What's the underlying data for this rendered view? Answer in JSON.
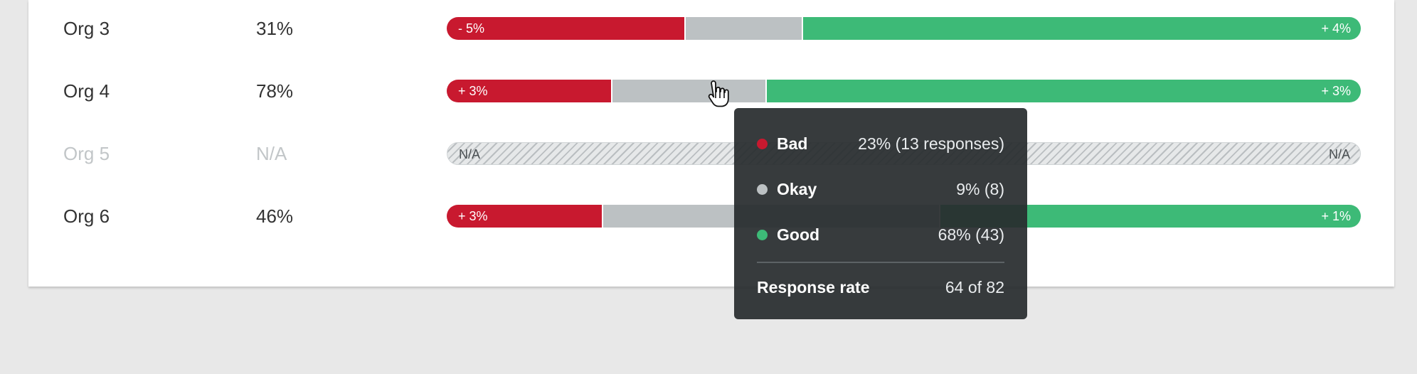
{
  "rows": [
    {
      "name": "Org 3",
      "pct": "31%",
      "bad": 26,
      "okay": 13,
      "good": 61,
      "delta_left": "- 5%",
      "delta_right": "+ 4%"
    },
    {
      "name": "Org 4",
      "pct": "78%",
      "bad": 18,
      "okay": 17,
      "good": 65,
      "delta_left": "+ 3%",
      "delta_right": "+ 3%"
    },
    {
      "name": "Org 5",
      "pct": "N/A",
      "na": true,
      "delta_left": "N/A",
      "delta_right": "N/A"
    },
    {
      "name": "Org 6",
      "pct": "46%",
      "bad": 17,
      "okay": 37,
      "good": 46,
      "delta_left": "+ 3%",
      "delta_right": "+ 1%"
    }
  ],
  "tooltip": {
    "items": [
      {
        "label": "Bad",
        "value": "23% (13 responses)",
        "color": "#c8192f"
      },
      {
        "label": "Okay",
        "value": "9% (8)",
        "color": "#bcc1c3"
      },
      {
        "label": "Good",
        "value": "68% (43)",
        "color": "#3dba77"
      }
    ],
    "response_label": "Response rate",
    "response_value": "64 of 82"
  },
  "colors": {
    "bad": "#c8192f",
    "okay": "#bcc1c3",
    "good": "#3dba77"
  },
  "icons": {
    "cursor": "hand-pointer-icon"
  }
}
